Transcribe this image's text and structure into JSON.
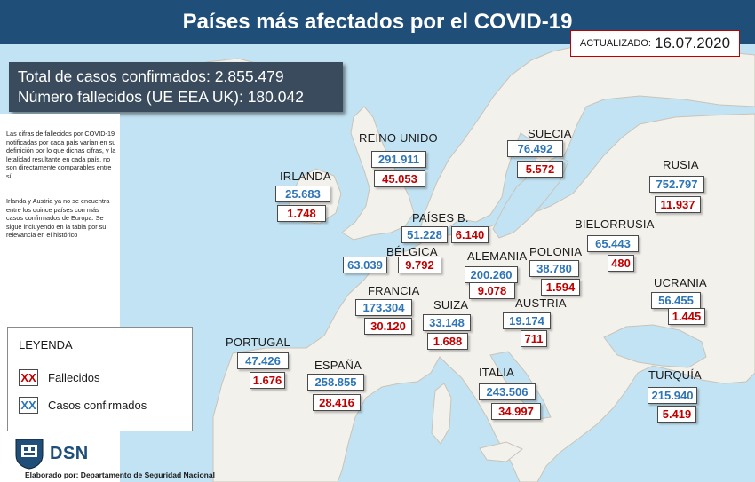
{
  "title": "Países más afectados por el COVID-19",
  "updated": {
    "label": "ACTUALIZADO:",
    "date": "16.07.2020"
  },
  "totals": {
    "line1": "Total de casos confirmados:  2.855.479",
    "line2": "Número fallecidos (UE EEA UK): 180.042"
  },
  "notes": {
    "p1": "Las cifras de fallecidos por COVID-19 notificadas por cada país varían en su definición por lo que dichas cifras, y la letalidad resultante en cada país, no son directamente comparables entre sí.",
    "p2": "Irlanda y Austria ya no se encuentra entre los quince países con más casos confirmados de Europa. Se sigue incluyendo en la tabla por su relevancia en el histórico"
  },
  "legend": {
    "title": "LEYENDA",
    "deaths_sample": "XX",
    "deaths_label": "Fallecidos",
    "cases_sample": "XX",
    "cases_label": "Casos confirmados"
  },
  "logo": {
    "text": "DSN"
  },
  "credit": "Elaborado por: Departamento de Seguridad Nacional",
  "colors": {
    "sea": "#c2e3f3",
    "land": "#f3f1ec",
    "land_border": "#c9c4b8",
    "title_bar": "#1f4e79",
    "cases": "#2e75b6",
    "deaths": "#c00000",
    "totals_box": "#3a4b5e"
  },
  "countries": [
    {
      "id": "reino-unido",
      "name": "REINO UNIDO",
      "cases": "291.911",
      "deaths": "45.053"
    },
    {
      "id": "suecia",
      "name": "SUECIA",
      "cases": "76.492",
      "deaths": "5.572"
    },
    {
      "id": "irlanda",
      "name": "IRLANDA",
      "cases": "25.683",
      "deaths": "1.748"
    },
    {
      "id": "rusia",
      "name": "RUSIA",
      "cases": "752.797",
      "deaths": "11.937"
    },
    {
      "id": "paises-bajos",
      "name": "PAÍSES B.",
      "cases": "51.228",
      "deaths": "6.140"
    },
    {
      "id": "bielorrusia",
      "name": "BIELORRUSIA",
      "cases": "65.443",
      "deaths": "480"
    },
    {
      "id": "belgica",
      "name": "BÉLGICA",
      "cases": "63.039",
      "deaths": "9.792"
    },
    {
      "id": "alemania",
      "name": "ALEMANIA",
      "cases": "200.260",
      "deaths": "9.078"
    },
    {
      "id": "polonia",
      "name": "POLONIA",
      "cases": "38.780",
      "deaths": "1.594"
    },
    {
      "id": "francia",
      "name": "FRANCIA",
      "cases": "173.304",
      "deaths": "30.120"
    },
    {
      "id": "suiza",
      "name": "SUIZA",
      "cases": "33.148",
      "deaths": "1.688"
    },
    {
      "id": "austria",
      "name": "AUSTRIA",
      "cases": "19.174",
      "deaths": "711"
    },
    {
      "id": "ucrania",
      "name": "UCRANIA",
      "cases": "56.455",
      "deaths": "1.445"
    },
    {
      "id": "portugal",
      "name": "PORTUGAL",
      "cases": "47.426",
      "deaths": "1.676"
    },
    {
      "id": "espana",
      "name": "ESPAÑA",
      "cases": "258.855",
      "deaths": "28.416"
    },
    {
      "id": "italia",
      "name": "ITALIA",
      "cases": "243.506",
      "deaths": "34.997"
    },
    {
      "id": "turquia",
      "name": "TURQUÍA",
      "cases": "215.940",
      "deaths": "5.419"
    }
  ]
}
